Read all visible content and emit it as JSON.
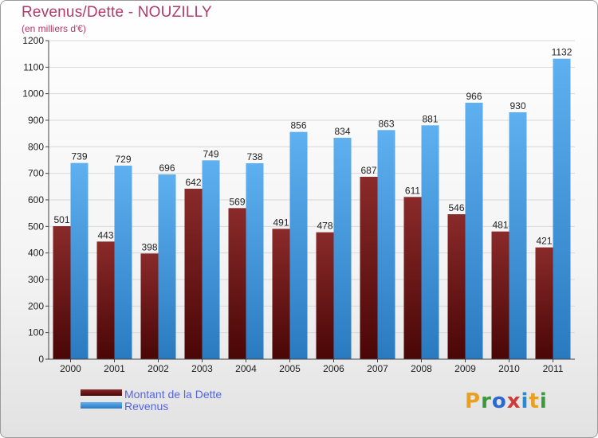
{
  "title": "Revenus/Dette - NOUZILLY",
  "subtitle": "(en milliers d'€)",
  "logo": {
    "text": "Proxiti",
    "colors": [
      "#e8a020",
      "#3a9a3a",
      "#2a6ad0",
      "#d03a3a",
      "#2a8ad0",
      "#e8a020",
      "#3a9a3a"
    ]
  },
  "colors": {
    "dette": "#7a1a1a",
    "revenus": "#4a9ee0",
    "title": "#b03a6a"
  },
  "chart_data": {
    "type": "bar",
    "categories": [
      "2000",
      "2001",
      "2002",
      "2003",
      "2004",
      "2005",
      "2006",
      "2007",
      "2008",
      "2009",
      "2010",
      "2011"
    ],
    "series": [
      {
        "name": "Montant de la Dette",
        "values": [
          501,
          443,
          398,
          642,
          569,
          491,
          478,
          687,
          611,
          546,
          481,
          421
        ]
      },
      {
        "name": "Revenus",
        "values": [
          739,
          729,
          696,
          749,
          738,
          856,
          834,
          863,
          881,
          966,
          930,
          1132
        ]
      }
    ],
    "yticks": [
      0,
      100,
      200,
      300,
      400,
      500,
      600,
      700,
      800,
      900,
      1000,
      1100,
      1200
    ],
    "ylim": [
      0,
      1200
    ],
    "grid": true,
    "legend": "bottom-left"
  }
}
